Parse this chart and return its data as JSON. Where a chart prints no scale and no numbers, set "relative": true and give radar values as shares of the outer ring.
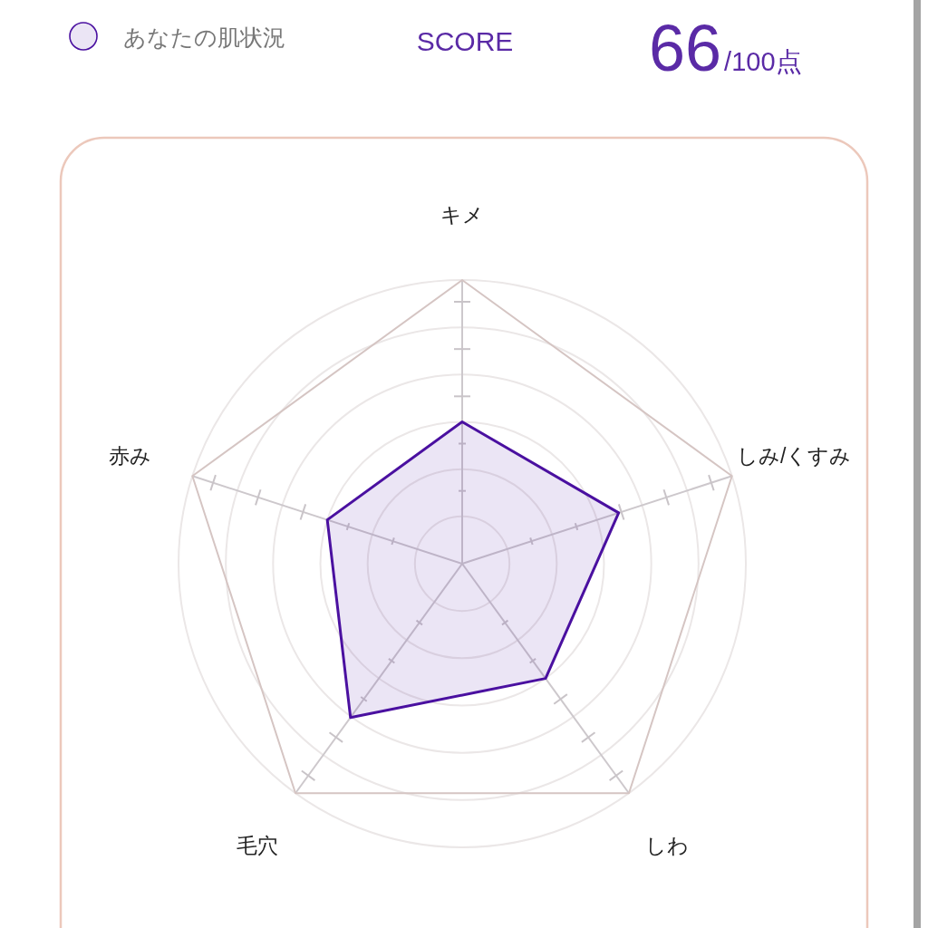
{
  "chart_data": {
    "type": "radar",
    "title": "SCORE",
    "categories": [
      "キメ",
      "しみ/くすみ",
      "しわ",
      "毛穴",
      "赤み"
    ],
    "series": [
      {
        "name": "あなたの肌状況",
        "color": "#4a10a0",
        "values": [
          0.5,
          0.58,
          0.5,
          0.67,
          0.5
        ]
      }
    ],
    "relative": true,
    "grid": true,
    "legend": "top left",
    "annotations": [
      "66",
      "/100点"
    ]
  }
}
